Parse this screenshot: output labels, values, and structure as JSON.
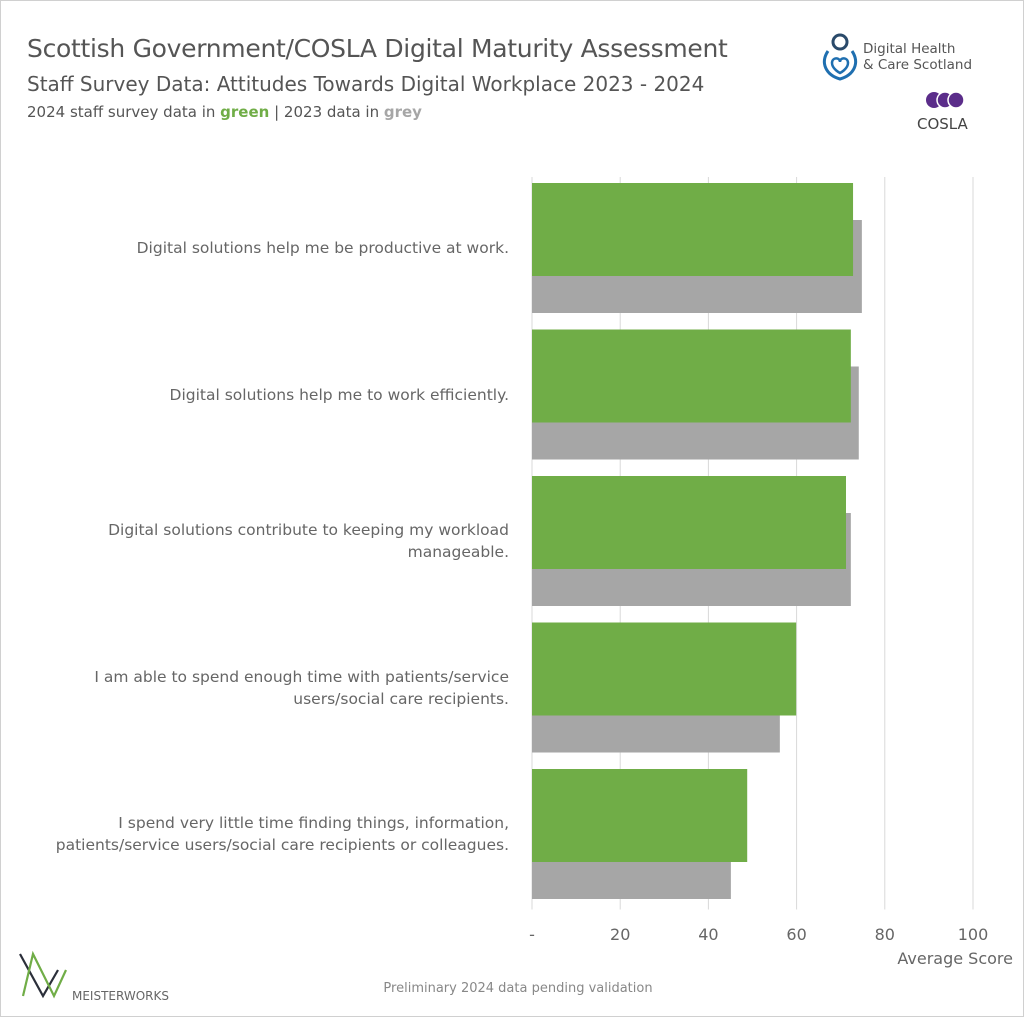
{
  "header": {
    "title": "Scottish Government/COSLA Digital Maturity Assessment",
    "subtitle": "Staff Survey Data: Attitudes Towards Digital Workplace 2023 - 2024",
    "legend_prefix": "2024 staff survey data in ",
    "legend_green": "green",
    "legend_mid": " | 2023 data in ",
    "legend_grey": "grey"
  },
  "logos": {
    "dhcs_line1": "Digital Health",
    "dhcs_line2": "& Care Scotland",
    "cosla": "COSLA",
    "meisterworks": "MEISTERWORKS"
  },
  "footer": "Preliminary 2024 data pending validation",
  "colors": {
    "green": "#70ad47",
    "grey": "#a6a6a6",
    "text": "#555555"
  },
  "chart_data": {
    "type": "bar",
    "orientation": "horizontal",
    "categories": [
      "Digital solutions help me be productive at work.",
      "Digital solutions help me to work efficiently.",
      "Digital solutions contribute to keeping my workload manageable.",
      "I am able to spend enough time with patients/service users/social care recipients.",
      "I spend very little time finding things, information, patients/service users/social care recipients or colleagues."
    ],
    "series": [
      {
        "year": "2024",
        "color": "#70ad47",
        "values": [
          72.8,
          72.3,
          71.2,
          59.9,
          48.8
        ]
      },
      {
        "year": "2023",
        "color": "#a6a6a6",
        "values": [
          74.8,
          74.1,
          72.3,
          56.2,
          45.1
        ]
      }
    ],
    "xlabel": "Average Score",
    "xlim": [
      0,
      100
    ],
    "xticks": [
      "-",
      "20",
      "40",
      "60",
      "80",
      "100"
    ],
    "grid": true
  }
}
